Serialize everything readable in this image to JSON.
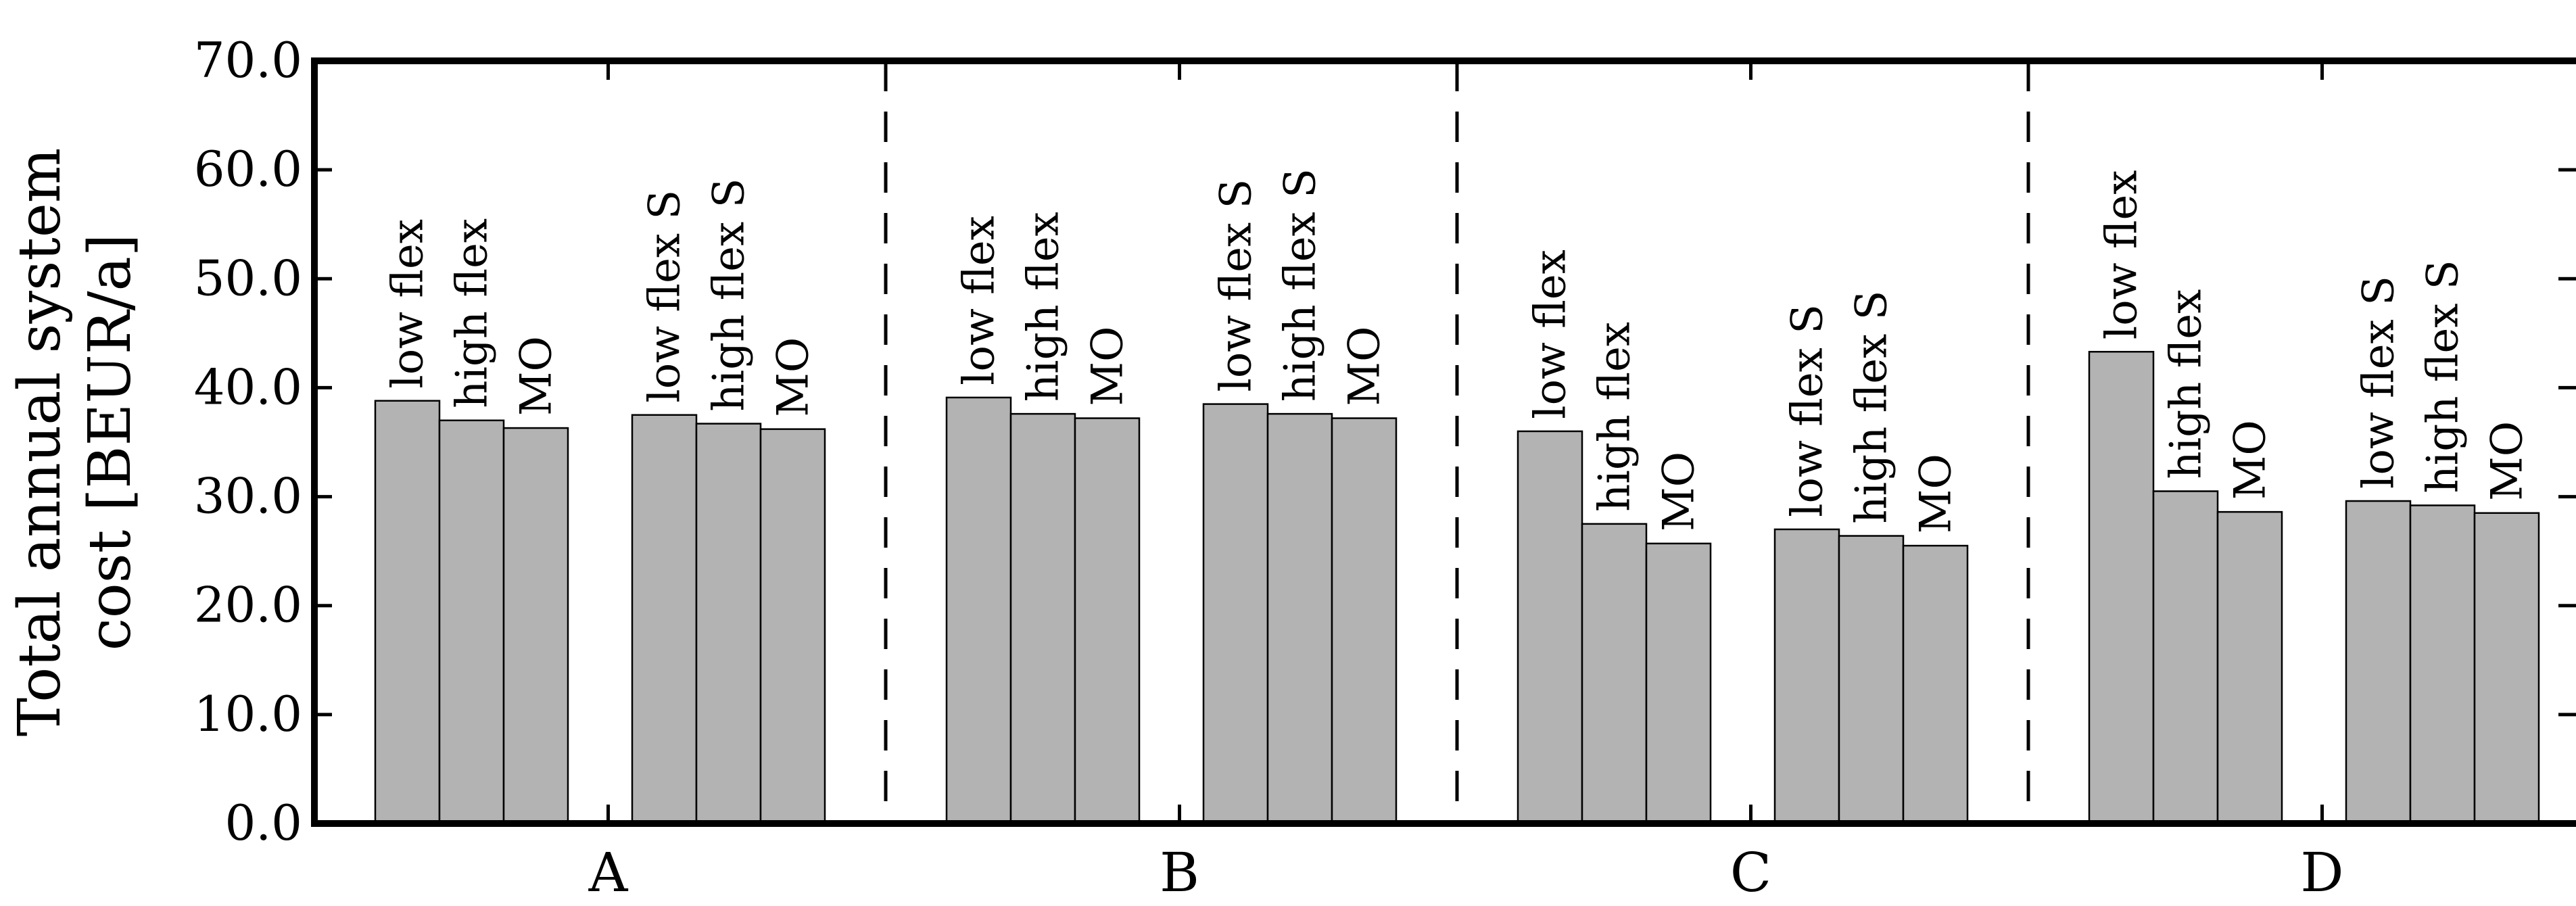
{
  "chart_data": {
    "type": "bar",
    "ylabel_lines": [
      "Total annual system",
      "cost [BEUR/a]"
    ],
    "ylim": [
      0,
      70
    ],
    "yticks": [
      "0.0",
      "10.0",
      "20.0",
      "30.0",
      "40.0",
      "50.0",
      "60.0",
      "70.0"
    ],
    "grid": false,
    "bar_color": "#b3b3b3",
    "scenarios": [
      {
        "label": "A",
        "groups": [
          {
            "bars": [
              {
                "label": "low flex",
                "value": 38.8
              },
              {
                "label": "high flex",
                "value": 37.0
              },
              {
                "label": "MO",
                "value": 36.3
              }
            ]
          },
          {
            "bars": [
              {
                "label": "low flex S",
                "value": 37.5
              },
              {
                "label": "high flex S",
                "value": 36.7
              },
              {
                "label": "MO",
                "value": 36.2
              }
            ]
          }
        ]
      },
      {
        "label": "B",
        "groups": [
          {
            "bars": [
              {
                "label": "low flex",
                "value": 39.1
              },
              {
                "label": "high flex",
                "value": 37.6
              },
              {
                "label": "MO",
                "value": 37.2
              }
            ]
          },
          {
            "bars": [
              {
                "label": "low flex S",
                "value": 38.5
              },
              {
                "label": "high flex S",
                "value": 37.6
              },
              {
                "label": "MO",
                "value": 37.2
              }
            ]
          }
        ]
      },
      {
        "label": "C",
        "groups": [
          {
            "bars": [
              {
                "label": "low flex",
                "value": 36.0
              },
              {
                "label": "high flex",
                "value": 27.5
              },
              {
                "label": "MO",
                "value": 25.7
              }
            ]
          },
          {
            "bars": [
              {
                "label": "low flex S",
                "value": 27.0
              },
              {
                "label": "high flex S",
                "value": 26.4
              },
              {
                "label": "MO",
                "value": 25.5
              }
            ]
          }
        ]
      },
      {
        "label": "D",
        "groups": [
          {
            "bars": [
              {
                "label": "low flex",
                "value": 43.3
              },
              {
                "label": "high flex",
                "value": 30.5
              },
              {
                "label": "MO",
                "value": 28.6
              }
            ]
          },
          {
            "bars": [
              {
                "label": "low flex S",
                "value": 29.6
              },
              {
                "label": "high flex S",
                "value": 29.2
              },
              {
                "label": "MO",
                "value": 28.5
              }
            ]
          }
        ]
      }
    ]
  }
}
